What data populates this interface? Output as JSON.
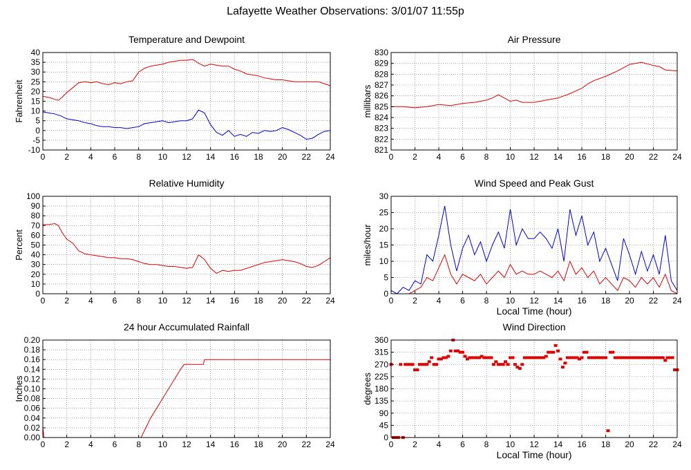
{
  "page": {
    "title": "Lafayette Weather Observations: 3/01/07 11:55p"
  },
  "colors": {
    "primary_series": "#dd0000",
    "secondary_series": "#0000cc",
    "grid": "#666666",
    "frame": "#000000"
  },
  "chart_data": [
    {
      "id": "temp",
      "type": "line",
      "title": "Temperature and Dewpoint",
      "ylabel": "Fahrenheit",
      "xlabel": "",
      "xlim": [
        0,
        24
      ],
      "ylim": [
        -10,
        40
      ],
      "xticks": [
        0,
        2,
        4,
        6,
        8,
        10,
        12,
        14,
        16,
        18,
        20,
        22,
        24
      ],
      "yticks": [
        -10,
        -5,
        0,
        5,
        10,
        15,
        20,
        25,
        30,
        35,
        40
      ],
      "grid": true,
      "legend": "none",
      "series": [
        {
          "color": "#dd0000",
          "x": [
            0,
            0.5,
            1,
            1.3,
            1.6,
            2,
            2.5,
            3,
            3.5,
            4,
            4.5,
            5,
            5.5,
            6,
            6.5,
            7,
            7.5,
            8,
            8.5,
            9,
            9.5,
            10,
            10.5,
            11,
            11.5,
            12,
            12.5,
            13,
            13.5,
            14,
            14.5,
            15,
            15.5,
            16,
            16.5,
            17,
            17.5,
            18,
            18.5,
            19,
            19.5,
            20,
            20.5,
            21,
            21.5,
            22,
            22.5,
            23,
            23.5,
            24
          ],
          "y": [
            17.5,
            17,
            16,
            15.5,
            17,
            19.5,
            22,
            24.5,
            25,
            24.5,
            25,
            24,
            23.5,
            24.5,
            24,
            25,
            25.5,
            30,
            32,
            33,
            33.5,
            34,
            35,
            35.5,
            36,
            36,
            36.5,
            34.5,
            33,
            34,
            33.5,
            33,
            33,
            31.5,
            30.5,
            29,
            28.5,
            28,
            27,
            26.5,
            26,
            26,
            25.5,
            25,
            25,
            25,
            25,
            25,
            24,
            23
          ]
        },
        {
          "color": "#0000cc",
          "x": [
            0,
            0.5,
            1,
            1.5,
            2,
            2.5,
            3,
            3.5,
            4,
            4.5,
            5,
            5.5,
            6,
            6.5,
            7,
            7.5,
            8,
            8.5,
            9,
            9.5,
            10,
            10.5,
            11,
            11.5,
            12,
            12.5,
            13,
            13.5,
            14,
            14.5,
            15,
            15.5,
            16,
            16.5,
            17,
            17.5,
            18,
            18.5,
            19,
            19.5,
            20,
            20.5,
            21,
            21.5,
            22,
            22.5,
            23,
            23.5,
            24
          ],
          "y": [
            9.5,
            9,
            8.5,
            7.5,
            6,
            5.5,
            5,
            4,
            3.5,
            2.5,
            2,
            2,
            1.5,
            1.5,
            1,
            1.5,
            2,
            3.5,
            4,
            4.5,
            5,
            4,
            4.5,
            5,
            5,
            6,
            10.5,
            9,
            3,
            -1,
            -2.5,
            0,
            -3,
            -2,
            -3,
            -1,
            -1.5,
            0,
            -0.5,
            0,
            1.5,
            0.5,
            -1,
            -2.5,
            -4.5,
            -4,
            -2,
            -0.5,
            0
          ]
        }
      ]
    },
    {
      "id": "pressure",
      "type": "line",
      "title": "Air Pressure",
      "ylabel": "millibars",
      "xlabel": "",
      "xlim": [
        0,
        24
      ],
      "ylim": [
        821,
        830
      ],
      "xticks": [
        0,
        2,
        4,
        6,
        8,
        10,
        12,
        14,
        16,
        18,
        20,
        22,
        24
      ],
      "yticks": [
        821,
        822,
        823,
        824,
        825,
        826,
        827,
        828,
        829,
        830
      ],
      "grid": true,
      "legend": "none",
      "series": [
        {
          "color": "#dd0000",
          "x": [
            0,
            1,
            2,
            3,
            4,
            5,
            6,
            7,
            7.5,
            8,
            8.5,
            9,
            9.5,
            10,
            10.5,
            11,
            12,
            13,
            14,
            15,
            16,
            16.5,
            17,
            18,
            19,
            19.5,
            20,
            21,
            22,
            22.5,
            23,
            24
          ],
          "y": [
            825.0,
            825.0,
            824.9,
            825.0,
            825.2,
            825.1,
            825.3,
            825.4,
            825.5,
            825.6,
            825.8,
            826.1,
            825.8,
            825.5,
            825.6,
            825.4,
            825.4,
            825.6,
            825.8,
            826.2,
            826.7,
            827.1,
            827.4,
            827.8,
            828.3,
            828.6,
            828.9,
            829.1,
            828.8,
            828.7,
            828.4,
            828.3
          ]
        }
      ]
    },
    {
      "id": "humidity",
      "type": "line",
      "title": "Relative Humidity",
      "ylabel": "Percent",
      "xlabel": "",
      "xlim": [
        0,
        24
      ],
      "ylim": [
        0,
        100
      ],
      "xticks": [
        0,
        2,
        4,
        6,
        8,
        10,
        12,
        14,
        16,
        18,
        20,
        22,
        24
      ],
      "yticks": [
        0,
        10,
        20,
        30,
        40,
        50,
        60,
        70,
        80,
        90,
        100
      ],
      "grid": true,
      "legend": "none",
      "series": [
        {
          "color": "#dd0000",
          "x": [
            0,
            0.5,
            1,
            1.3,
            1.6,
            2,
            2.5,
            3,
            3.5,
            4,
            4.5,
            5,
            5.5,
            6,
            6.5,
            7,
            7.5,
            8,
            8.5,
            9,
            9.5,
            10,
            10.5,
            11,
            11.5,
            12,
            12.5,
            13,
            13.5,
            14,
            14.5,
            15,
            15.5,
            16,
            16.5,
            17,
            17.5,
            18,
            18.5,
            19,
            19.5,
            20,
            20.5,
            21,
            21.5,
            22,
            22.5,
            23,
            23.5,
            24
          ],
          "y": [
            71,
            71,
            72,
            70,
            63,
            56,
            52,
            44,
            41,
            40,
            39,
            38,
            37,
            37,
            36,
            36,
            35,
            33,
            31,
            30,
            30,
            29,
            28,
            28,
            27,
            26,
            27,
            40,
            35,
            26,
            21,
            24,
            23,
            24,
            24,
            26,
            28,
            30,
            32,
            33,
            34,
            35,
            34,
            33,
            31,
            28,
            27,
            29,
            33,
            37
          ]
        }
      ]
    },
    {
      "id": "wind",
      "type": "line",
      "title": "Wind Speed and Peak Gust",
      "ylabel": "miles/hour",
      "xlabel": "Local Time (hour)",
      "xlim": [
        0,
        24
      ],
      "ylim": [
        0,
        30
      ],
      "xticks": [
        0,
        2,
        4,
        6,
        8,
        10,
        12,
        14,
        16,
        18,
        20,
        22,
        24
      ],
      "yticks": [
        0,
        5,
        10,
        15,
        20,
        25,
        30
      ],
      "grid": true,
      "legend": "none",
      "series": [
        {
          "color": "#0000cc",
          "x": [
            0,
            0.5,
            1,
            1.5,
            2,
            2.5,
            3,
            3.5,
            4,
            4.5,
            5,
            5.5,
            6,
            6.5,
            7,
            7.5,
            8,
            8.5,
            9,
            9.5,
            10,
            10.5,
            11,
            11.5,
            12,
            12.5,
            13,
            13.5,
            14,
            14.5,
            15,
            15.5,
            16,
            16.5,
            17,
            17.5,
            18,
            18.5,
            19,
            19.5,
            20,
            20.5,
            21,
            21.5,
            22,
            22.5,
            23,
            23.5,
            24
          ],
          "y": [
            1,
            0,
            2,
            1,
            4,
            3,
            12,
            10,
            18,
            27,
            15,
            7,
            14,
            18,
            12,
            16,
            10,
            15,
            19,
            14,
            26,
            15,
            20,
            17,
            17,
            19,
            17,
            14,
            20,
            10,
            26,
            18,
            24,
            15,
            19,
            10,
            14,
            9,
            4,
            17,
            12,
            6,
            13,
            7,
            12,
            6,
            18,
            4,
            1
          ]
        },
        {
          "color": "#dd0000",
          "x": [
            0,
            0.5,
            1,
            1.5,
            2,
            2.5,
            3,
            3.5,
            4,
            4.5,
            5,
            5.5,
            6,
            6.5,
            7,
            7.5,
            8,
            8.5,
            9,
            9.5,
            10,
            10.5,
            11,
            11.5,
            12,
            12.5,
            13,
            13.5,
            14,
            14.5,
            15,
            15.5,
            16,
            16.5,
            17,
            17.5,
            18,
            18.5,
            19,
            19.5,
            20,
            20.5,
            21,
            21.5,
            22,
            22.5,
            23,
            23.5,
            24
          ],
          "y": [
            0,
            0,
            0,
            0,
            1,
            2,
            5,
            4,
            8,
            12,
            6,
            3,
            6,
            5,
            4,
            6,
            3,
            5,
            7,
            5,
            9,
            6,
            7,
            6,
            6,
            7,
            6,
            5,
            7,
            4,
            10,
            6,
            8,
            5,
            7,
            3,
            5,
            3,
            1,
            5,
            4,
            2,
            5,
            3,
            5,
            2,
            6,
            1,
            0
          ]
        }
      ]
    },
    {
      "id": "rain",
      "type": "line",
      "title": "24 hour Accumulated Rainfall",
      "ylabel": "Inches",
      "xlabel": "",
      "xlim": [
        0,
        24
      ],
      "ylim": [
        0,
        0.2
      ],
      "xticks": [
        0,
        2,
        4,
        6,
        8,
        10,
        12,
        14,
        16,
        18,
        20,
        22,
        24
      ],
      "yticks": [
        0.0,
        0.02,
        0.04,
        0.06,
        0.08,
        0.1,
        0.12,
        0.14,
        0.16,
        0.18,
        0.2
      ],
      "yticklabels": [
        "0.00",
        "0.02",
        "0.04",
        "0.06",
        "0.08",
        "0.10",
        "0.12",
        "0.14",
        "0.16",
        "0.18",
        "0.20"
      ],
      "grid": true,
      "legend": "none",
      "series": [
        {
          "color": "#dd0000",
          "x": [
            0,
            0.05,
            0.1,
            8.2,
            8.6,
            9,
            9.5,
            10,
            10.5,
            11,
            11.5,
            11.8,
            12,
            12.2,
            12.5,
            13,
            13.4,
            13.5,
            24
          ],
          "y": [
            0.02,
            0.01,
            0.0,
            0.0,
            0.02,
            0.04,
            0.06,
            0.08,
            0.1,
            0.12,
            0.14,
            0.15,
            0.15,
            0.15,
            0.15,
            0.15,
            0.15,
            0.16,
            0.16
          ]
        }
      ]
    },
    {
      "id": "direction",
      "type": "scatter",
      "title": "Wind Direction",
      "ylabel": "degrees",
      "xlabel": "Local Time (hour)",
      "xlim": [
        0,
        24
      ],
      "ylim": [
        0,
        360
      ],
      "xticks": [
        0,
        2,
        4,
        6,
        8,
        10,
        12,
        14,
        16,
        18,
        20,
        22,
        24
      ],
      "yticks": [
        0,
        45,
        90,
        135,
        180,
        225,
        270,
        315,
        360
      ],
      "grid": true,
      "legend": "none",
      "series": [
        {
          "color": "#dd0000",
          "x": [
            0,
            0.2,
            0.4,
            0.6,
            0.8,
            1.0,
            1.2,
            1.4,
            1.6,
            1.8,
            2.0,
            2.2,
            2.4,
            2.6,
            2.8,
            3.0,
            3.2,
            3.4,
            3.6,
            3.8,
            4.0,
            4.2,
            4.4,
            4.6,
            4.8,
            5.0,
            5.2,
            5.4,
            5.6,
            5.8,
            6.0,
            6.2,
            6.4,
            6.6,
            6.8,
            7.0,
            7.2,
            7.4,
            7.6,
            7.8,
            8.0,
            8.2,
            8.4,
            8.6,
            8.8,
            9.0,
            9.2,
            9.4,
            9.6,
            9.8,
            10.0,
            10.2,
            10.4,
            10.6,
            10.8,
            11.0,
            11.2,
            11.4,
            11.6,
            11.8,
            12.0,
            12.2,
            12.4,
            12.6,
            12.8,
            13.0,
            13.2,
            13.4,
            13.6,
            13.8,
            14.0,
            14.2,
            14.4,
            14.6,
            14.8,
            15.0,
            15.2,
            15.4,
            15.6,
            15.8,
            16.0,
            16.2,
            16.4,
            16.6,
            16.8,
            17.0,
            17.2,
            17.4,
            17.6,
            17.8,
            18.0,
            18.2,
            18.4,
            18.6,
            18.8,
            19.0,
            19.2,
            19.4,
            19.6,
            19.8,
            20.0,
            20.2,
            20.4,
            20.6,
            20.8,
            21.0,
            21.2,
            21.4,
            21.6,
            21.8,
            22.0,
            22.2,
            22.4,
            22.6,
            22.8,
            23.0,
            23.2,
            23.4,
            23.6,
            23.8,
            24.0
          ],
          "y": [
            270,
            0,
            0,
            0,
            270,
            0,
            270,
            270,
            270,
            270,
            250,
            250,
            270,
            270,
            270,
            270,
            280,
            295,
            270,
            270,
            290,
            290,
            295,
            295,
            300,
            320,
            360,
            320,
            320,
            315,
            315,
            300,
            290,
            295,
            295,
            295,
            295,
            295,
            300,
            295,
            295,
            295,
            295,
            270,
            280,
            270,
            270,
            270,
            280,
            270,
            295,
            295,
            270,
            260,
            255,
            270,
            295,
            295,
            295,
            295,
            295,
            295,
            295,
            295,
            295,
            300,
            315,
            315,
            315,
            340,
            320,
            290,
            260,
            275,
            295,
            295,
            295,
            295,
            295,
            290,
            295,
            315,
            315,
            295,
            295,
            295,
            295,
            295,
            295,
            295,
            295,
            25,
            315,
            315,
            295,
            295,
            295,
            295,
            295,
            295,
            295,
            295,
            295,
            295,
            295,
            295,
            295,
            295,
            295,
            295,
            295,
            295,
            295,
            295,
            295,
            285,
            295,
            295,
            295,
            250,
            250
          ]
        }
      ]
    }
  ]
}
